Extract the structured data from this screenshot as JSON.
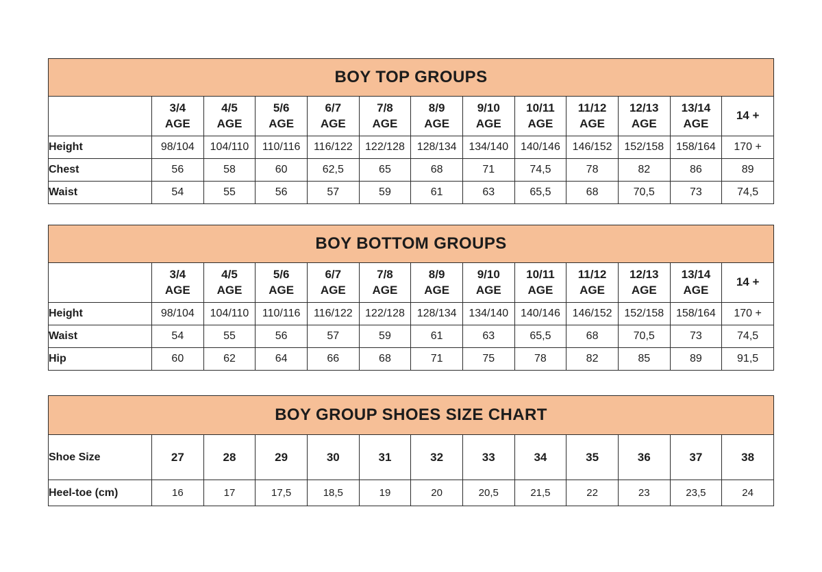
{
  "page": {
    "background": "#ffffff",
    "title_band_color": "#F6BF97",
    "border_color": "#2b2b2b",
    "text_color": "#1d1d1d"
  },
  "tables": [
    {
      "id": "boy-top-groups",
      "title": "BOY TOP GROUPS",
      "age_headers": [
        "3/4\nAGE",
        "4/5\nAGE",
        "5/6\nAGE",
        "6/7\nAGE",
        "7/8\nAGE",
        "8/9\nAGE",
        "9/10\nAGE",
        "10/11\nAGE",
        "11/12\nAGE",
        "12/13\nAGE",
        "13/14\nAGE",
        "14 +"
      ],
      "rows": [
        {
          "label": "Height",
          "emphasis": false,
          "values": [
            "98/104",
            "104/110",
            "110/116",
            "116/122",
            "122/128",
            "128/134",
            "134/140",
            "140/146",
            "146/152",
            "152/158",
            "158/164",
            "170 +"
          ]
        },
        {
          "label": "Chest",
          "emphasis": false,
          "values": [
            "56",
            "58",
            "60",
            "62,5",
            "65",
            "68",
            "71",
            "74,5",
            "78",
            "82",
            "86",
            "89"
          ]
        },
        {
          "label": "Waist",
          "emphasis": false,
          "values": [
            "54",
            "55",
            "56",
            "57",
            "59",
            "61",
            "63",
            "65,5",
            "68",
            "70,5",
            "73",
            "74,5"
          ]
        }
      ]
    },
    {
      "id": "boy-bottom-groups",
      "title": "BOY BOTTOM GROUPS",
      "age_headers": [
        "3/4\nAGE",
        "4/5\nAGE",
        "5/6\nAGE",
        "6/7\nAGE",
        "7/8\nAGE",
        "8/9\nAGE",
        "9/10\nAGE",
        "10/11\nAGE",
        "11/12\nAGE",
        "12/13\nAGE",
        "13/14\nAGE",
        "14 +"
      ],
      "rows": [
        {
          "label": "Height",
          "emphasis": false,
          "values": [
            "98/104",
            "104/110",
            "110/116",
            "116/122",
            "122/128",
            "128/134",
            "134/140",
            "140/146",
            "146/152",
            "152/158",
            "158/164",
            "170 +"
          ]
        },
        {
          "label": "Waist",
          "emphasis": false,
          "values": [
            "54",
            "55",
            "56",
            "57",
            "59",
            "61",
            "63",
            "65,5",
            "68",
            "70,5",
            "73",
            "74,5"
          ]
        },
        {
          "label": "Hip",
          "emphasis": false,
          "values": [
            "60",
            "62",
            "64",
            "66",
            "68",
            "71",
            "75",
            "78",
            "82",
            "85",
            "89",
            "91,5"
          ]
        }
      ]
    },
    {
      "id": "boy-group-shoes-size-chart",
      "title": "BOY GROUP SHOES SIZE CHART",
      "age_headers": null,
      "rows": [
        {
          "label": "Shoe Size",
          "emphasis": true,
          "values": [
            "27",
            "28",
            "29",
            "30",
            "31",
            "32",
            "33",
            "34",
            "35",
            "36",
            "37",
            "38"
          ]
        },
        {
          "label": "Heel-toe (cm)",
          "emphasis": false,
          "values": [
            "16",
            "17",
            "17,5",
            "18,5",
            "19",
            "20",
            "20,5",
            "21,5",
            "22",
            "23",
            "23,5",
            "24"
          ]
        }
      ]
    }
  ]
}
